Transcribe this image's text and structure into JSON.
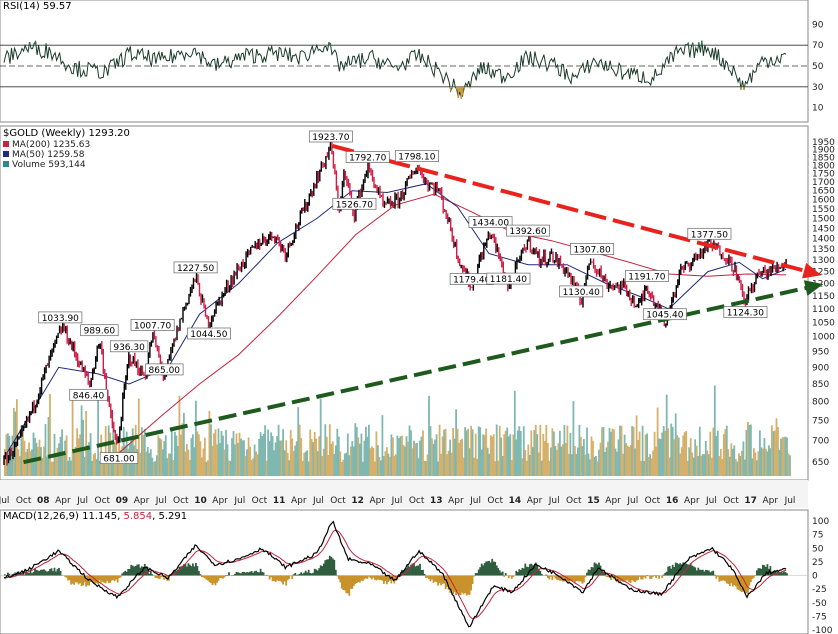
{
  "rsi_panel": {
    "header": "RSI(14) 59.57",
    "ticks": [
      "90",
      "70",
      "50",
      "30",
      "10"
    ],
    "levels": [
      70,
      50,
      30
    ],
    "last": 59.57
  },
  "price_panel": {
    "title": "$GOLD (Weekly) 1293.20",
    "legend": [
      {
        "text": "MA(200) 1235.63",
        "color": "#c4243c"
      },
      {
        "text": "MA(50) 1259.58",
        "color": "#1f2a7a"
      },
      {
        "text": "Volume 593,144",
        "color": "#2e8b8b"
      }
    ],
    "yticks": [
      "1950",
      "1900",
      "1850",
      "1800",
      "1750",
      "1700",
      "1650",
      "1600",
      "1550",
      "1500",
      "1450",
      "1400",
      "1350",
      "1300",
      "1250",
      "1200",
      "1150",
      "1100",
      "1050",
      "1000",
      "950",
      "900",
      "850",
      "800",
      "750",
      "700",
      "650"
    ],
    "colors": {
      "down": "#d01b45",
      "up": "#000000",
      "ma200": "#c4243c",
      "ma50": "#1f2a7a",
      "resistance": "#e8231e",
      "support": "#1e5a1e",
      "vol_a": "#7fb8b0",
      "vol_b": "#d6b06a"
    }
  },
  "x_axis_labels": [
    "Jul",
    "Oct",
    "08",
    "Apr",
    "Jul",
    "Oct",
    "09",
    "Apr",
    "Jul",
    "Oct",
    "10",
    "Apr",
    "Jul",
    "Oct",
    "11",
    "Apr",
    "Jul",
    "Oct",
    "12",
    "Apr",
    "Jul",
    "Oct",
    "13",
    "Apr",
    "Jul",
    "Oct",
    "14",
    "Apr",
    "Jul",
    "Oct",
    "15",
    "Apr",
    "Jul",
    "Oct",
    "16",
    "Apr",
    "Jul",
    "Oct",
    "17",
    "Apr",
    "Jul"
  ],
  "macd_panel": {
    "header": "MACD(12,26,9) 11.145, 5.854, 5.291",
    "header_parts": [
      "MACD(12,26,9) 11.145, ",
      "5.854",
      ", 5.291"
    ],
    "ticks": [
      "100",
      "75",
      "50",
      "25",
      "0",
      "-25",
      "-50",
      "-75",
      "-100"
    ]
  },
  "chart_data": {
    "type": "line",
    "title": "$GOLD (Weekly) 1293.20",
    "x_unit": "year",
    "xlim": [
      2007.5,
      2017.55
    ],
    "ylim": [
      620,
      1950
    ],
    "scale": "log",
    "price_anchors": [
      [
        2007.5,
        650
      ],
      [
        2007.7,
        700
      ],
      [
        2007.9,
        800
      ],
      [
        2008.2,
        1005
      ],
      [
        2008.25,
        1033.9
      ],
      [
        2008.45,
        920
      ],
      [
        2008.6,
        846.4
      ],
      [
        2008.72,
        989.6
      ],
      [
        2008.85,
        770
      ],
      [
        2008.95,
        681
      ],
      [
        2009.1,
        936.3
      ],
      [
        2009.3,
        870
      ],
      [
        2009.4,
        1007.7
      ],
      [
        2009.55,
        865
      ],
      [
        2009.8,
        1100
      ],
      [
        2009.95,
        1227.5
      ],
      [
        2010.1,
        1044.5
      ],
      [
        2010.45,
        1240
      ],
      [
        2010.75,
        1380
      ],
      [
        2010.95,
        1420
      ],
      [
        2011.1,
        1330
      ],
      [
        2011.35,
        1560
      ],
      [
        2011.6,
        1830
      ],
      [
        2011.68,
        1923.7
      ],
      [
        2011.78,
        1530
      ],
      [
        2011.85,
        1750
      ],
      [
        2011.98,
        1526.7
      ],
      [
        2012.15,
        1792.7
      ],
      [
        2012.35,
        1560
      ],
      [
        2012.55,
        1600
      ],
      [
        2012.78,
        1798.1
      ],
      [
        2012.9,
        1700
      ],
      [
        2013.05,
        1660
      ],
      [
        2013.2,
        1460
      ],
      [
        2013.3,
        1320
      ],
      [
        2013.48,
        1179.4
      ],
      [
        2013.6,
        1320
      ],
      [
        2013.72,
        1434
      ],
      [
        2013.95,
        1181.4
      ],
      [
        2014.2,
        1392.6
      ],
      [
        2014.35,
        1300
      ],
      [
        2014.5,
        1320
      ],
      [
        2014.7,
        1250
      ],
      [
        2014.88,
        1130.4
      ],
      [
        2015.0,
        1307.8
      ],
      [
        2015.2,
        1200
      ],
      [
        2015.45,
        1180
      ],
      [
        2015.6,
        1100
      ],
      [
        2015.72,
        1191.7
      ],
      [
        2015.95,
        1045.4
      ],
      [
        2016.15,
        1250
      ],
      [
        2016.4,
        1330
      ],
      [
        2016.52,
        1377.5
      ],
      [
        2016.7,
        1330
      ],
      [
        2016.85,
        1260
      ],
      [
        2016.96,
        1124.3
      ],
      [
        2017.15,
        1240
      ],
      [
        2017.35,
        1260
      ],
      [
        2017.5,
        1293.2
      ]
    ],
    "labels": [
      [
        2008.22,
        1033.9,
        "1033.90"
      ],
      [
        2008.58,
        846.4,
        "846.40"
      ],
      [
        2008.72,
        989.6,
        "989.60"
      ],
      [
        2008.97,
        681,
        "681.00"
      ],
      [
        2009.1,
        936.3,
        "936.30"
      ],
      [
        2009.4,
        1007.7,
        "1007.70"
      ],
      [
        2009.55,
        865,
        "865.00"
      ],
      [
        2009.95,
        1227.5,
        "1227.50"
      ],
      [
        2010.12,
        1044.5,
        "1044.50"
      ],
      [
        2011.68,
        1923.7,
        "1923.70"
      ],
      [
        2012.15,
        1792.7,
        "1792.70"
      ],
      [
        2012.78,
        1798.1,
        "1798.10"
      ],
      [
        2011.98,
        1526.7,
        "1526.70"
      ],
      [
        2013.72,
        1434,
        "1434.00"
      ],
      [
        2013.48,
        1179.4,
        "1179.40"
      ],
      [
        2013.95,
        1181.4,
        "1181.40"
      ],
      [
        2014.2,
        1392.6,
        "1392.60"
      ],
      [
        2014.88,
        1130.4,
        "1130.40"
      ],
      [
        2015.02,
        1307.8,
        "1307.80"
      ],
      [
        2015.72,
        1191.7,
        "1191.70"
      ],
      [
        2015.95,
        1045.4,
        "1045.40"
      ],
      [
        2016.52,
        1377.5,
        "1377.50"
      ],
      [
        2016.98,
        1124.3,
        "1124.30"
      ]
    ],
    "ma50_anchors": [
      [
        2007.5,
        660
      ],
      [
        2008.2,
        900
      ],
      [
        2008.7,
        880
      ],
      [
        2009.1,
        850
      ],
      [
        2009.6,
        900
      ],
      [
        2010.0,
        1080
      ],
      [
        2010.5,
        1200
      ],
      [
        2011.0,
        1380
      ],
      [
        2011.5,
        1500
      ],
      [
        2011.95,
        1650
      ],
      [
        2012.4,
        1640
      ],
      [
        2012.9,
        1690
      ],
      [
        2013.3,
        1560
      ],
      [
        2013.7,
        1330
      ],
      [
        2014.2,
        1280
      ],
      [
        2014.7,
        1280
      ],
      [
        2015.2,
        1200
      ],
      [
        2015.7,
        1140
      ],
      [
        2016.0,
        1100
      ],
      [
        2016.5,
        1250
      ],
      [
        2016.9,
        1290
      ],
      [
        2017.2,
        1220
      ],
      [
        2017.5,
        1260
      ]
    ],
    "ma200_anchors": [
      [
        2008.9,
        660
      ],
      [
        2009.5,
        760
      ],
      [
        2010.0,
        850
      ],
      [
        2010.5,
        940
      ],
      [
        2011.0,
        1070
      ],
      [
        2011.5,
        1230
      ],
      [
        2012.0,
        1420
      ],
      [
        2012.5,
        1570
      ],
      [
        2013.0,
        1630
      ],
      [
        2013.5,
        1530
      ],
      [
        2014.0,
        1430
      ],
      [
        2014.5,
        1390
      ],
      [
        2015.0,
        1340
      ],
      [
        2015.5,
        1290
      ],
      [
        2016.0,
        1240
      ],
      [
        2016.5,
        1230
      ],
      [
        2017.0,
        1240
      ],
      [
        2017.5,
        1236
      ]
    ],
    "resistance_line": [
      [
        2011.7,
        1923.7
      ],
      [
        2017.78,
        1250
      ]
    ],
    "support_line": [
      [
        2007.75,
        650
      ],
      [
        2017.8,
        1185
      ]
    ],
    "rsi_anchors": [
      [
        2007.5,
        56
      ],
      [
        2007.8,
        68
      ],
      [
        2008.1,
        64
      ],
      [
        2008.4,
        48
      ],
      [
        2008.8,
        44
      ],
      [
        2009.1,
        62
      ],
      [
        2009.5,
        55
      ],
      [
        2009.9,
        66
      ],
      [
        2010.2,
        50
      ],
      [
        2010.6,
        60
      ],
      [
        2011.0,
        62
      ],
      [
        2011.3,
        58
      ],
      [
        2011.6,
        72
      ],
      [
        2011.8,
        50
      ],
      [
        2012.2,
        58
      ],
      [
        2012.5,
        48
      ],
      [
        2012.8,
        60
      ],
      [
        2013.1,
        42
      ],
      [
        2013.35,
        22
      ],
      [
        2013.6,
        48
      ],
      [
        2013.9,
        40
      ],
      [
        2014.2,
        58
      ],
      [
        2014.5,
        52
      ],
      [
        2014.8,
        38
      ],
      [
        2015.05,
        55
      ],
      [
        2015.4,
        44
      ],
      [
        2015.8,
        38
      ],
      [
        2016.1,
        62
      ],
      [
        2016.5,
        68
      ],
      [
        2016.8,
        48
      ],
      [
        2016.95,
        30
      ],
      [
        2017.2,
        55
      ],
      [
        2017.5,
        59.57
      ]
    ],
    "macd_anchors": [
      [
        2007.5,
        -5
      ],
      [
        2007.8,
        10
      ],
      [
        2008.2,
        45
      ],
      [
        2008.6,
        -10
      ],
      [
        2008.95,
        -40
      ],
      [
        2009.3,
        15
      ],
      [
        2009.6,
        -5
      ],
      [
        2009.95,
        55
      ],
      [
        2010.2,
        20
      ],
      [
        2010.5,
        30
      ],
      [
        2010.8,
        50
      ],
      [
        2011.1,
        15
      ],
      [
        2011.5,
        40
      ],
      [
        2011.7,
        100
      ],
      [
        2011.9,
        30
      ],
      [
        2012.2,
        20
      ],
      [
        2012.5,
        -10
      ],
      [
        2012.8,
        45
      ],
      [
        2013.1,
        5
      ],
      [
        2013.45,
        -95
      ],
      [
        2013.75,
        -20
      ],
      [
        2014.0,
        -30
      ],
      [
        2014.3,
        20
      ],
      [
        2014.6,
        0
      ],
      [
        2014.9,
        -30
      ],
      [
        2015.1,
        15
      ],
      [
        2015.5,
        -25
      ],
      [
        2015.9,
        -35
      ],
      [
        2016.25,
        30
      ],
      [
        2016.55,
        50
      ],
      [
        2016.8,
        15
      ],
      [
        2017.0,
        -40
      ],
      [
        2017.25,
        5
      ],
      [
        2017.5,
        11.145
      ]
    ]
  }
}
